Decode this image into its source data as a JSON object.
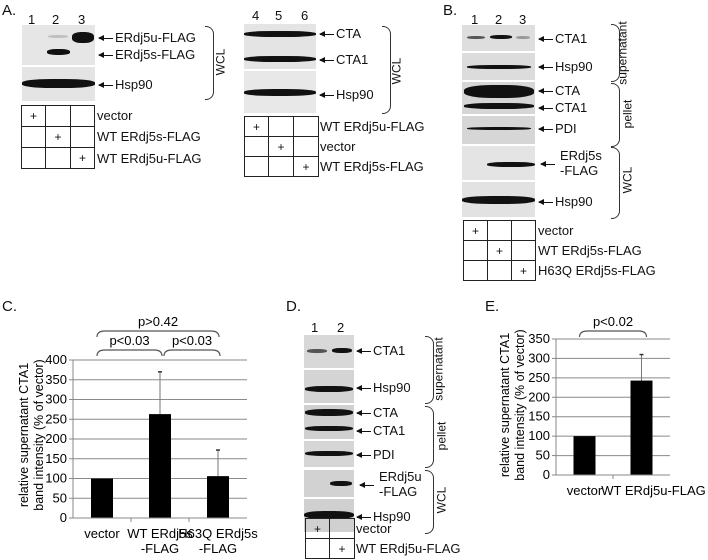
{
  "panelA": {
    "letter": "A.",
    "left": {
      "lanes": [
        "1",
        "2",
        "3"
      ],
      "labels": [
        "ERdj5u-FLAG",
        "ERdj5s-FLAG",
        "Hsp90"
      ],
      "bracket": "WCL",
      "conditions": [
        "vector",
        "WT ERdj5s-FLAG",
        "WT ERdj5u-FLAG"
      ],
      "plus": [
        [
          1,
          0,
          0
        ],
        [
          0,
          1,
          0
        ],
        [
          0,
          0,
          1
        ]
      ]
    },
    "right": {
      "lanes": [
        "4",
        "5",
        "6"
      ],
      "labels": [
        "CTA",
        "CTA1",
        "Hsp90"
      ],
      "bracket": "WCL",
      "conditions": [
        "WT ERdj5u-FLAG",
        "vector",
        "WT ERdj5s-FLAG"
      ],
      "plus": [
        [
          1,
          0,
          0
        ],
        [
          0,
          1,
          0
        ],
        [
          0,
          0,
          1
        ]
      ]
    }
  },
  "panelB": {
    "letter": "B.",
    "lanes": [
      "1",
      "2",
      "3"
    ],
    "labels": [
      "CTA1",
      "Hsp90",
      "CTA",
      "CTA1",
      "PDI",
      "ERdj5s",
      "-FLAG",
      "Hsp90"
    ],
    "brackets": [
      "supernatant",
      "pellet",
      "WCL"
    ],
    "conditions": [
      "vector",
      "WT ERdj5s-FLAG",
      "H63Q ERdj5s-FLAG"
    ],
    "plus_mark": "+"
  },
  "panelC": {
    "letter": "C.",
    "pvalues": [
      "p>0.42",
      "p<0.03",
      "p<0.03"
    ]
  },
  "panelD": {
    "letter": "D.",
    "lanes": [
      "1",
      "2"
    ],
    "labels": [
      "CTA1",
      "Hsp90",
      "CTA",
      "CTA1",
      "PDI",
      "ERdj5u",
      "-FLAG",
      "Hsp90"
    ],
    "brackets": [
      "supernatant",
      "pellet",
      "WCL"
    ],
    "conditions": [
      "vector",
      "WT ERdj5u-FLAG"
    ],
    "plus_mark": "+"
  },
  "panelE": {
    "letter": "E.",
    "pvalues": [
      "p<0.02"
    ]
  },
  "chart_data": [
    {
      "panel": "C",
      "type": "bar",
      "title": "",
      "categories": [
        "vector",
        "WT ERdj5s -FLAG",
        "H63Q ERdj5s -FLAG"
      ],
      "category_lines": [
        [
          "vector",
          ""
        ],
        [
          "WT ERdj5s",
          "-FLAG"
        ],
        [
          "H63Q ERdj5s",
          "-FLAG"
        ]
      ],
      "values": [
        100,
        263,
        106
      ],
      "error_upper": [
        100,
        370,
        172
      ],
      "xlabel": "",
      "ylabel": "relative supernatant CTA1 band intensity (% of vector)",
      "ylabel_lines": [
        "relative  supernatant CTA1",
        "band intensity (% of vector)"
      ],
      "ylim": [
        0,
        400
      ],
      "yticks": [
        0,
        50,
        100,
        150,
        200,
        250,
        300,
        350,
        400
      ],
      "grid": true,
      "annotations": [
        {
          "text": "p>0.42",
          "from": 0,
          "to": 2
        },
        {
          "text": "p<0.03",
          "from": 0,
          "to": 1
        },
        {
          "text": "p<0.03",
          "from": 1,
          "to": 2
        }
      ]
    },
    {
      "panel": "E",
      "type": "bar",
      "title": "",
      "categories": [
        "vector",
        "WT ERdj5u-FLAG"
      ],
      "values": [
        100,
        243
      ],
      "error_upper": [
        100,
        310
      ],
      "xlabel": "",
      "ylabel": "relative supernatant CTA1 band intensity (% of vector)",
      "ylabel_lines": [
        "relative  supernatant CTA1",
        "band intensity (% of vector)"
      ],
      "ylim": [
        0,
        350
      ],
      "yticks": [
        0,
        50,
        100,
        150,
        200,
        250,
        300,
        350
      ],
      "grid": true,
      "annotations": [
        {
          "text": "p<0.02",
          "from": 0,
          "to": 1
        }
      ]
    }
  ]
}
